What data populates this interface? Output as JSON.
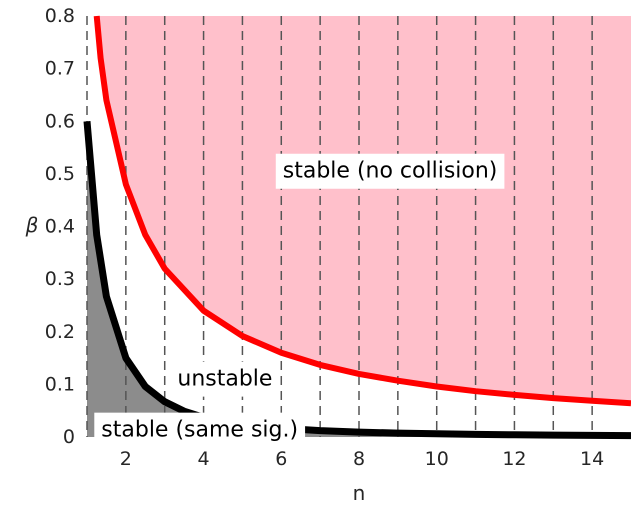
{
  "chart_data": {
    "type": "area",
    "xlabel": "n",
    "ylabel": "β",
    "xlim": [
      1,
      15
    ],
    "ylim": [
      0,
      0.8
    ],
    "x_ticks": [
      2,
      4,
      6,
      8,
      10,
      12,
      14
    ],
    "y_ticks": [
      {
        "value": 0,
        "label": "0"
      },
      {
        "value": 0.1,
        "label": "0.1"
      },
      {
        "value": 0.2,
        "label": "0.2"
      },
      {
        "value": 0.3,
        "label": "0.3"
      },
      {
        "value": 0.4,
        "label": "0.4"
      },
      {
        "value": 0.5,
        "label": "0.5"
      },
      {
        "value": 0.6,
        "label": "0.6"
      },
      {
        "value": 0.7,
        "label": "0.7"
      },
      {
        "value": 0.8,
        "label": "0.8"
      }
    ],
    "vertical_reference_lines": [
      1,
      2,
      3,
      4,
      5,
      6,
      7,
      8,
      9,
      10,
      11,
      12,
      13,
      14
    ],
    "series": [
      {
        "color": "#ff0000",
        "x": [
          1.25,
          1.35,
          1.5,
          2,
          2.5,
          3,
          4,
          5,
          6,
          7,
          8,
          9,
          10,
          11,
          12,
          13,
          14,
          15
        ],
        "y": [
          0.8,
          0.72,
          0.64,
          0.48,
          0.384,
          0.32,
          0.24,
          0.192,
          0.16,
          0.137,
          0.12,
          0.107,
          0.096,
          0.087,
          0.08,
          0.074,
          0.069,
          0.064
        ]
      },
      {
        "color": "#000000",
        "x": [
          1,
          1.25,
          1.5,
          2,
          2.5,
          3,
          3.5,
          4,
          5,
          6,
          7,
          8,
          9,
          10,
          11,
          12,
          13,
          14,
          15
        ],
        "y": [
          0.6,
          0.384,
          0.267,
          0.15,
          0.096,
          0.067,
          0.049,
          0.0375,
          0.024,
          0.0167,
          0.0122,
          0.0094,
          0.0074,
          0.006,
          0.005,
          0.0042,
          0.0036,
          0.0031,
          0.0027
        ]
      }
    ],
    "regions": [
      {
        "label": "stable (no collision)",
        "color": "#ffc0cb",
        "label_x": 8.8,
        "label_y": 0.505
      },
      {
        "label": "unstable",
        "color": "#ffffff",
        "label_x": 4.55,
        "label_y": 0.11
      },
      {
        "label": "stable (same sig.)",
        "color": "#8c8c8c",
        "label_x": 3.9,
        "label_y": 0.013
      }
    ],
    "grid": false,
    "legend": "none",
    "colors": {
      "stable_no_collision": "#ffc0cb",
      "stable_same_sig": "#8c8c8c",
      "red_curve": "#ff0000",
      "black_curve": "#000000",
      "dashed_lines": "#555555"
    }
  }
}
